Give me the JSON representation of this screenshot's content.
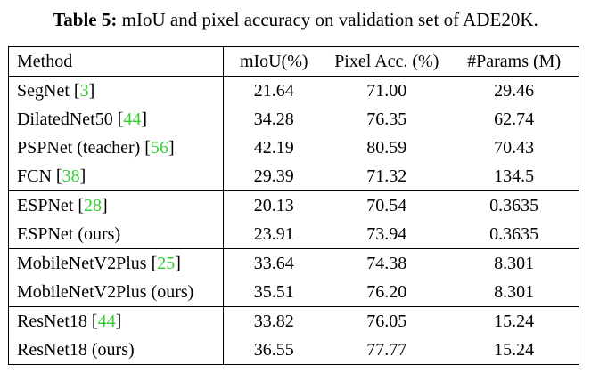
{
  "caption": {
    "label": "Table 5:",
    "text": "mIoU and pixel accuracy on validation set of ADE20K."
  },
  "table": {
    "headers": [
      "Method",
      "mIoU(%)",
      "Pixel Acc. (%)",
      "#Params (M)"
    ],
    "rows": [
      {
        "name": "SegNet",
        "ref": "3",
        "miou": "21.64",
        "acc": "71.00",
        "params": "29.46"
      },
      {
        "name": "DilatedNet50",
        "ref": "44",
        "miou": "34.28",
        "acc": "76.35",
        "params": "62.74"
      },
      {
        "name": "PSPNet (teacher)",
        "ref": "56",
        "miou": "42.19",
        "acc": "80.59",
        "params": "70.43"
      },
      {
        "name": "FCN",
        "ref": "38",
        "miou": "29.39",
        "acc": "71.32",
        "params": "134.5"
      },
      {
        "name": "ESPNet",
        "ref": "28",
        "miou": "20.13",
        "acc": "70.54",
        "params": "0.3635"
      },
      {
        "name": "ESPNet (ours)",
        "ref": "",
        "miou": "23.91",
        "acc": "73.94",
        "params": "0.3635"
      },
      {
        "name": "MobileNetV2Plus",
        "ref": "25",
        "miou": "33.64",
        "acc": "74.38",
        "params": "8.301"
      },
      {
        "name": "MobileNetV2Plus (ours)",
        "ref": "",
        "miou": "35.51",
        "acc": "76.20",
        "params": "8.301"
      },
      {
        "name": "ResNet18",
        "ref": "44",
        "miou": "33.82",
        "acc": "76.05",
        "params": "15.24"
      },
      {
        "name": "ResNet18 (ours)",
        "ref": "",
        "miou": "36.55",
        "acc": "77.77",
        "params": "15.24"
      }
    ]
  },
  "colors": {
    "citation": "#33cc33",
    "text": "#000000"
  }
}
